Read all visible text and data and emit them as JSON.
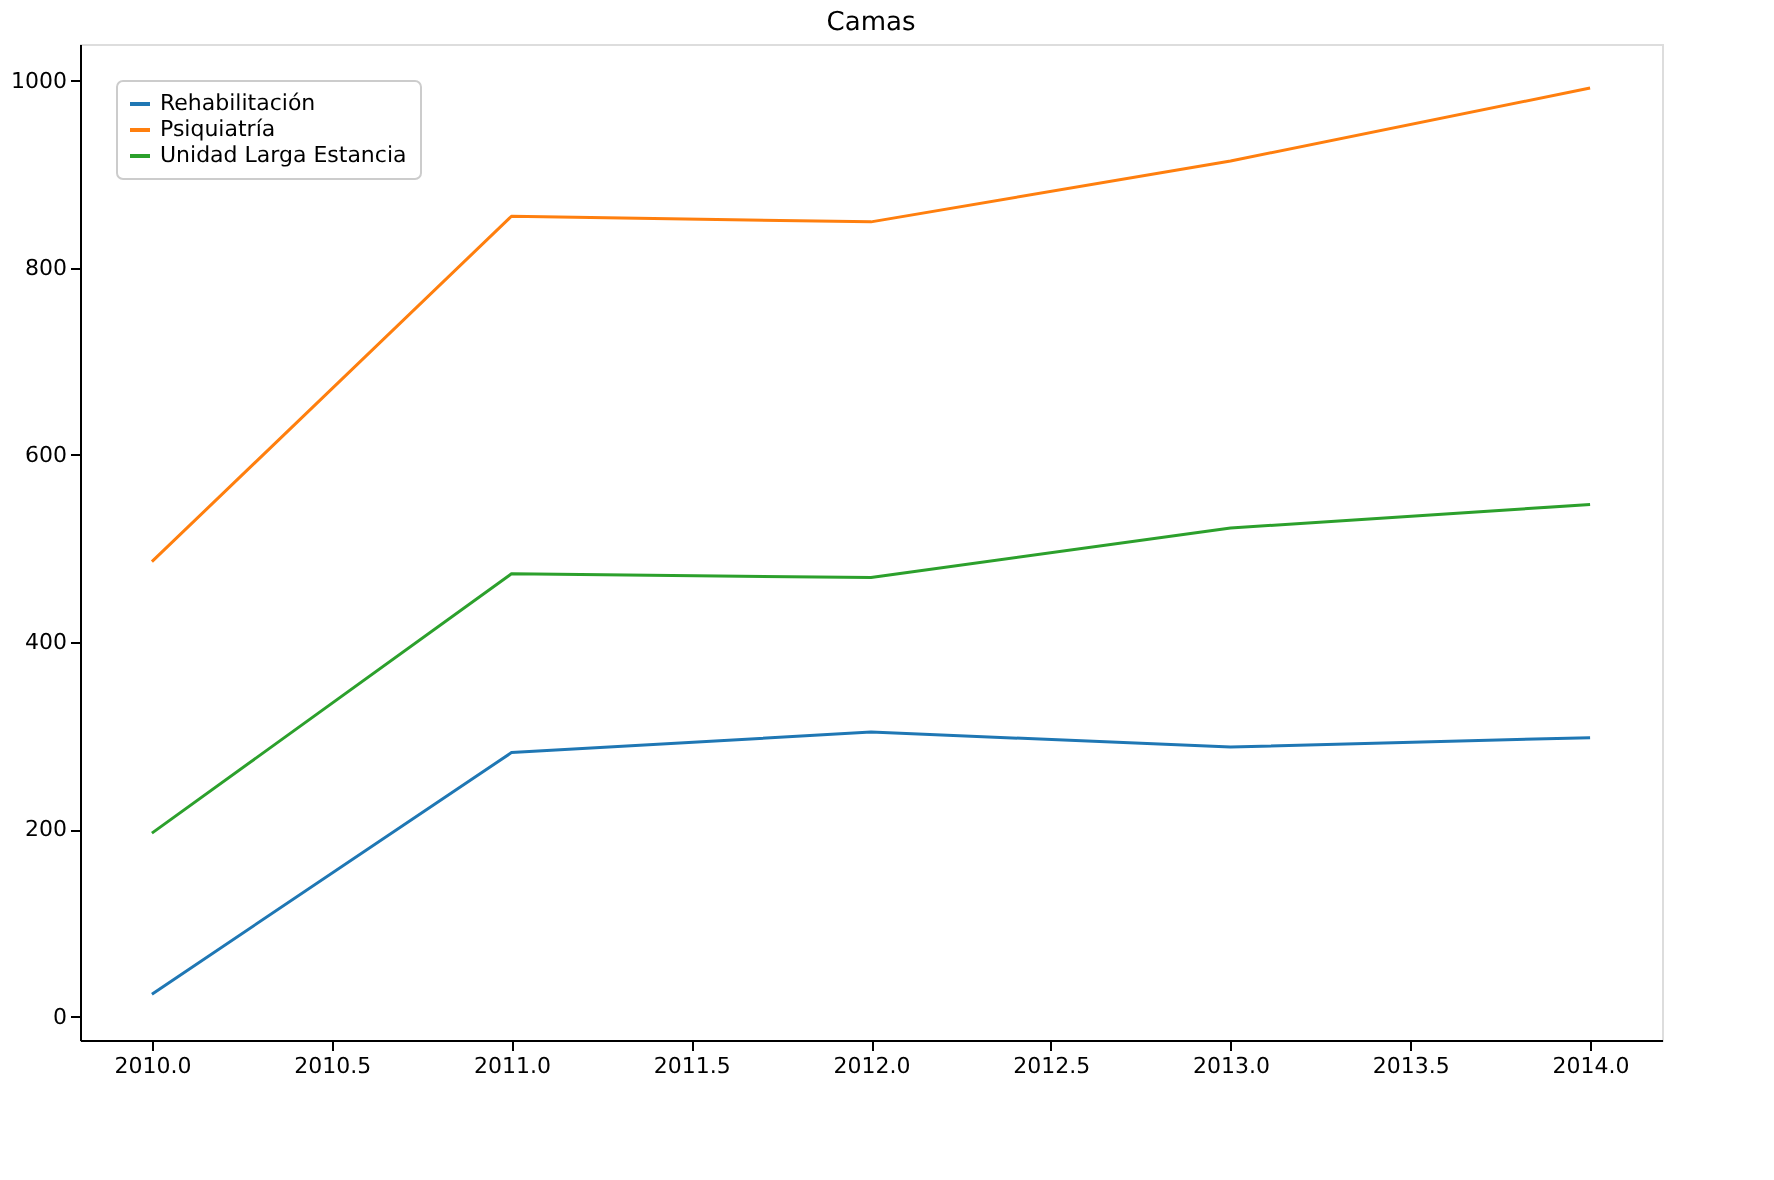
{
  "chart_data": {
    "type": "line",
    "title": "Camas",
    "x": [
      2010,
      2011,
      2012,
      2013,
      2014
    ],
    "series": [
      {
        "name": "Rehabilitación",
        "color": "#1f77b4",
        "values": [
          24,
          282,
          304,
          288,
          298
        ]
      },
      {
        "name": "Psiquiatría",
        "color": "#ff7f0e",
        "values": [
          486,
          855,
          849,
          914,
          992
        ]
      },
      {
        "name": "Unidad Larga Estancia",
        "color": "#2ca02c",
        "values": [
          196,
          473,
          469,
          522,
          547
        ]
      }
    ],
    "xlim": [
      2009.8,
      2014.2
    ],
    "xticks": [
      {
        "value": 2010,
        "label": "2010.0"
      },
      {
        "value": 2010.5,
        "label": "2010.5"
      },
      {
        "value": 2011,
        "label": "2011.0"
      },
      {
        "value": 2011.5,
        "label": "2011.5"
      },
      {
        "value": 2012,
        "label": "2012.0"
      },
      {
        "value": 2012.5,
        "label": "2012.5"
      },
      {
        "value": 2013,
        "label": "2013.0"
      },
      {
        "value": 2013.5,
        "label": "2013.5"
      },
      {
        "value": 2014,
        "label": "2014.0"
      }
    ],
    "ylim": [
      -25,
      1039
    ],
    "yticks": [
      0,
      200,
      400,
      600,
      800,
      1000
    ],
    "grid": false,
    "legend": "top left",
    "marker": "none",
    "line_style": "solid"
  }
}
